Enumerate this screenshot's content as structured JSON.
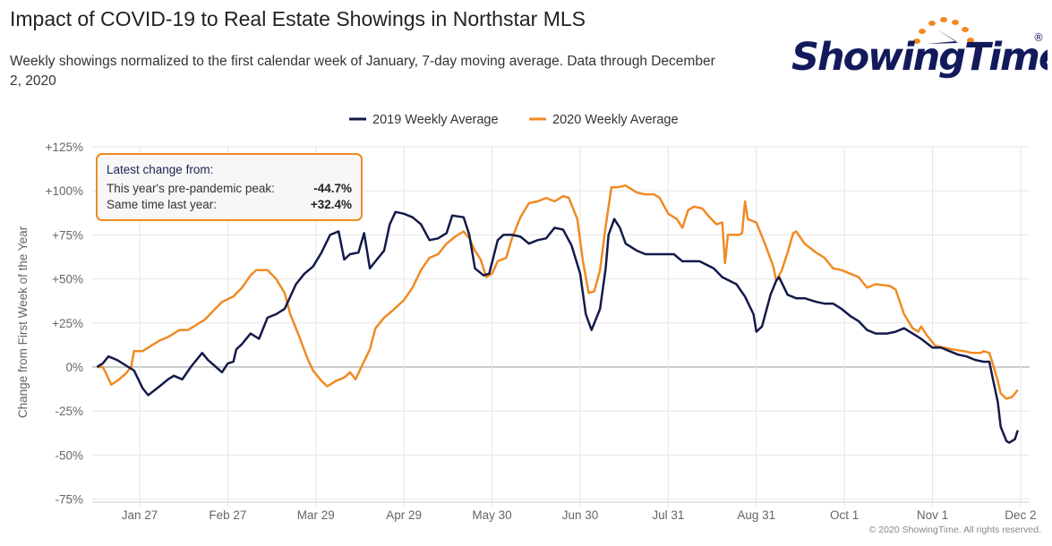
{
  "header": {
    "title": "Impact of COVID-19 to Real Estate Showings in Northstar MLS",
    "subtitle": "Weekly showings normalized to the first calendar week of January, 7-day moving average. Data through December 2, 2020"
  },
  "logo": {
    "text": "ShowingTime",
    "registered": "®",
    "colors": {
      "text": "#131a5c",
      "dots": "#f08a24"
    }
  },
  "infobox": {
    "heading": "Latest change from:",
    "rows": [
      {
        "label": "This year's pre-pandemic peak:",
        "value": "-44.7%"
      },
      {
        "label": "Same time last year:",
        "value": "+32.4%"
      }
    ]
  },
  "footer": {
    "copyright": "© 2020 ShowingTime. All rights reserved."
  },
  "chart_data": {
    "type": "line",
    "title": "",
    "xlabel": "",
    "ylabel": "Change from First Week of the Year",
    "ylim": [
      -75,
      125
    ],
    "y_ticks": [
      "+125%",
      "+100%",
      "+75%",
      "+50%",
      "+25%",
      "0%",
      "-25%",
      "-50%",
      "-75%"
    ],
    "y_tick_values": [
      125,
      100,
      75,
      50,
      25,
      0,
      -25,
      -50,
      -75
    ],
    "x_ticks": [
      "Jan 27",
      "Feb 27",
      "Mar 29",
      "Apr 29",
      "May 30",
      "Jun 30",
      "Jul 31",
      "Aug 31",
      "Oct 1",
      "Nov 1",
      "Dec 2"
    ],
    "grid": true,
    "legend": "top-center",
    "series": [
      {
        "name": "2019 Weekly Average",
        "color": "#131a4a",
        "points": [
          [
            "Jan 12",
            0
          ],
          [
            "Jan 14",
            2
          ],
          [
            "Jan 16",
            6
          ],
          [
            "Jan 19",
            4
          ],
          [
            "Jan 22",
            1
          ],
          [
            "Jan 25",
            -2
          ],
          [
            "Jan 28",
            -12
          ],
          [
            "Jan 30",
            -16
          ],
          [
            "Feb 3",
            -11
          ],
          [
            "Feb 6",
            -7
          ],
          [
            "Feb 8",
            -5
          ],
          [
            "Feb 11",
            -7
          ],
          [
            "Feb 14",
            0
          ],
          [
            "Feb 18",
            8
          ],
          [
            "Feb 20",
            4
          ],
          [
            "Feb 25",
            -3
          ],
          [
            "Feb 27",
            2
          ],
          [
            "Feb 29",
            3
          ],
          [
            "Mar 1",
            10
          ],
          [
            "Mar 3",
            13
          ],
          [
            "Mar 6",
            19
          ],
          [
            "Mar 9",
            16
          ],
          [
            "Mar 12",
            28
          ],
          [
            "Mar 15",
            30
          ],
          [
            "Mar 18",
            33
          ],
          [
            "Mar 22",
            47
          ],
          [
            "Mar 25",
            53
          ],
          [
            "Mar 28",
            57
          ],
          [
            "Mar 31",
            65
          ],
          [
            "Apr 3",
            75
          ],
          [
            "Apr 6",
            77
          ],
          [
            "Apr 8",
            61
          ],
          [
            "Apr 10",
            64
          ],
          [
            "Apr 13",
            65
          ],
          [
            "Apr 15",
            76
          ],
          [
            "Apr 17",
            56
          ],
          [
            "Apr 19",
            60
          ],
          [
            "Apr 22",
            66
          ],
          [
            "Apr 24",
            81
          ],
          [
            "Apr 26",
            88
          ],
          [
            "Apr 29",
            87
          ],
          [
            "May 2",
            85
          ],
          [
            "May 5",
            81
          ],
          [
            "May 8",
            72
          ],
          [
            "May 11",
            73
          ],
          [
            "May 14",
            76
          ],
          [
            "May 16",
            86
          ],
          [
            "May 20",
            85
          ],
          [
            "May 22",
            75
          ],
          [
            "May 24",
            56
          ],
          [
            "May 27",
            52
          ],
          [
            "May 29",
            53
          ],
          [
            "Jun 1",
            72
          ],
          [
            "Jun 3",
            75
          ],
          [
            "Jun 6",
            75
          ],
          [
            "Jun 9",
            74
          ],
          [
            "Jun 12",
            70
          ],
          [
            "Jun 15",
            72
          ],
          [
            "Jun 18",
            73
          ],
          [
            "Jun 21",
            79
          ],
          [
            "Jun 24",
            78
          ],
          [
            "Jun 27",
            69
          ],
          [
            "Jun 30",
            53
          ],
          [
            "Jul 2",
            30
          ],
          [
            "Jul 4",
            21
          ],
          [
            "Jul 7",
            33
          ],
          [
            "Jul 9",
            56
          ],
          [
            "Jul 10",
            75
          ],
          [
            "Jul 12",
            84
          ],
          [
            "Jul 14",
            79
          ],
          [
            "Jul 16",
            70
          ],
          [
            "Jul 20",
            66
          ],
          [
            "Jul 23",
            64
          ],
          [
            "Jul 27",
            64
          ],
          [
            "Aug 2",
            64
          ],
          [
            "Aug 5",
            60
          ],
          [
            "Aug 11",
            60
          ],
          [
            "Aug 16",
            56
          ],
          [
            "Aug 19",
            51
          ],
          [
            "Aug 24",
            47
          ],
          [
            "Aug 27",
            40
          ],
          [
            "Aug 30",
            30
          ],
          [
            "Aug 31",
            20
          ],
          [
            "Sep 2",
            23
          ],
          [
            "Sep 5",
            41
          ],
          [
            "Sep 7",
            49
          ],
          [
            "Sep 8",
            51
          ],
          [
            "Sep 11",
            41
          ],
          [
            "Sep 14",
            39
          ],
          [
            "Sep 17",
            39
          ],
          [
            "Sep 21",
            37
          ],
          [
            "Sep 24",
            36
          ],
          [
            "Sep 27",
            36
          ],
          [
            "Sep 30",
            33
          ],
          [
            "Oct 3",
            29
          ],
          [
            "Oct 6",
            26
          ],
          [
            "Oct 9",
            21
          ],
          [
            "Oct 12",
            19
          ],
          [
            "Oct 16",
            19
          ],
          [
            "Oct 19",
            20
          ],
          [
            "Oct 22",
            22
          ],
          [
            "Oct 25",
            19
          ],
          [
            "Oct 28",
            16
          ],
          [
            "Nov 1",
            11
          ],
          [
            "Nov 4",
            11
          ],
          [
            "Nov 7",
            9
          ],
          [
            "Nov 10",
            7
          ],
          [
            "Nov 13",
            6
          ],
          [
            "Nov 16",
            4
          ],
          [
            "Nov 19",
            3
          ],
          [
            "Nov 21",
            3
          ],
          [
            "Nov 22",
            -5
          ],
          [
            "Nov 24",
            -20
          ],
          [
            "Nov 25",
            -34
          ],
          [
            "Nov 27",
            -42
          ],
          [
            "Nov 28",
            -43
          ],
          [
            "Nov 30",
            -41
          ],
          [
            "Dec 1",
            -36
          ]
        ]
      },
      {
        "name": "2020 Weekly Average",
        "color": "#f08a24",
        "points": [
          [
            "Jan 12",
            0
          ],
          [
            "Jan 14",
            0
          ],
          [
            "Jan 15",
            -3
          ],
          [
            "Jan 17",
            -10
          ],
          [
            "Jan 19",
            -8
          ],
          [
            "Jan 22",
            -4
          ],
          [
            "Jan 24",
            0
          ],
          [
            "Jan 25",
            9
          ],
          [
            "Jan 28",
            9
          ],
          [
            "Jan 31",
            12
          ],
          [
            "Feb 3",
            15
          ],
          [
            "Feb 6",
            17
          ],
          [
            "Feb 10",
            21
          ],
          [
            "Feb 13",
            21
          ],
          [
            "Feb 16",
            24
          ],
          [
            "Feb 19",
            27
          ],
          [
            "Feb 22",
            32
          ],
          [
            "Feb 25",
            37
          ],
          [
            "Feb 29",
            40
          ],
          [
            "Mar 3",
            45
          ],
          [
            "Mar 6",
            52
          ],
          [
            "Mar 8",
            55
          ],
          [
            "Mar 12",
            55
          ],
          [
            "Mar 15",
            50
          ],
          [
            "Mar 18",
            42
          ],
          [
            "Mar 20",
            30
          ],
          [
            "Mar 23",
            18
          ],
          [
            "Mar 26",
            5
          ],
          [
            "Mar 28",
            -2
          ],
          [
            "Mar 31",
            -8
          ],
          [
            "Apr 2",
            -11
          ],
          [
            "Apr 5",
            -8
          ],
          [
            "Apr 8",
            -6
          ],
          [
            "Apr 10",
            -3
          ],
          [
            "Apr 12",
            -7
          ],
          [
            "Apr 14",
            0
          ],
          [
            "Apr 17",
            10
          ],
          [
            "Apr 19",
            22
          ],
          [
            "Apr 22",
            28
          ],
          [
            "Apr 25",
            32
          ],
          [
            "Apr 29",
            38
          ],
          [
            "May 2",
            45
          ],
          [
            "May 5",
            55
          ],
          [
            "May 8",
            62
          ],
          [
            "May 11",
            64
          ],
          [
            "May 14",
            70
          ],
          [
            "May 17",
            74
          ],
          [
            "May 20",
            77
          ],
          [
            "May 22",
            73
          ],
          [
            "May 24",
            66
          ],
          [
            "May 26",
            61
          ],
          [
            "May 28",
            51
          ],
          [
            "May 30",
            53
          ],
          [
            "Jun 1",
            60
          ],
          [
            "Jun 4",
            62
          ],
          [
            "Jun 6",
            73
          ],
          [
            "Jun 9",
            85
          ],
          [
            "Jun 12",
            93
          ],
          [
            "Jun 15",
            94
          ],
          [
            "Jun 18",
            96
          ],
          [
            "Jun 21",
            94
          ],
          [
            "Jun 24",
            97
          ],
          [
            "Jun 26",
            96
          ],
          [
            "Jun 29",
            84
          ],
          [
            "Jul 1",
            60
          ],
          [
            "Jul 3",
            42
          ],
          [
            "Jul 5",
            43
          ],
          [
            "Jul 7",
            55
          ],
          [
            "Jul 9",
            80
          ],
          [
            "Jul 11",
            102
          ],
          [
            "Jul 13",
            102
          ],
          [
            "Jul 16",
            103
          ],
          [
            "Jul 20",
            99
          ],
          [
            "Jul 23",
            98
          ],
          [
            "Jul 26",
            98
          ],
          [
            "Jul 28",
            96
          ],
          [
            "Jul 31",
            87
          ],
          [
            "Aug 3",
            84
          ],
          [
            "Aug 5",
            79
          ],
          [
            "Aug 7",
            89
          ],
          [
            "Aug 9",
            91
          ],
          [
            "Aug 12",
            90
          ],
          [
            "Aug 14",
            86
          ],
          [
            "Aug 17",
            81
          ],
          [
            "Aug 19",
            82
          ],
          [
            "Aug 20",
            59
          ],
          [
            "Aug 21",
            75
          ],
          [
            "Aug 25",
            75
          ],
          [
            "Aug 26",
            76
          ],
          [
            "Aug 27",
            94
          ],
          [
            "Aug 28",
            84
          ],
          [
            "Aug 31",
            82
          ],
          [
            "Sep 3",
            70
          ],
          [
            "Sep 6",
            57
          ],
          [
            "Sep 7",
            49
          ],
          [
            "Sep 9",
            55
          ],
          [
            "Sep 11",
            65
          ],
          [
            "Sep 13",
            76
          ],
          [
            "Sep 14",
            77
          ],
          [
            "Sep 17",
            70
          ],
          [
            "Sep 21",
            65
          ],
          [
            "Sep 24",
            62
          ],
          [
            "Sep 27",
            56
          ],
          [
            "Sep 30",
            55
          ],
          [
            "Oct 3",
            53
          ],
          [
            "Oct 6",
            51
          ],
          [
            "Oct 9",
            45
          ],
          [
            "Oct 12",
            47
          ],
          [
            "Oct 17",
            46
          ],
          [
            "Oct 19",
            44
          ],
          [
            "Oct 22",
            30
          ],
          [
            "Oct 25",
            22
          ],
          [
            "Oct 27",
            20
          ],
          [
            "Oct 28",
            23
          ],
          [
            "Oct 30",
            18
          ],
          [
            "Nov 2",
            12
          ],
          [
            "Nov 5",
            11
          ],
          [
            "Nov 8",
            10
          ],
          [
            "Nov 12",
            9
          ],
          [
            "Nov 15",
            8
          ],
          [
            "Nov 18",
            8
          ],
          [
            "Nov 19",
            9
          ],
          [
            "Nov 21",
            8
          ],
          [
            "Nov 22",
            3
          ],
          [
            "Nov 24",
            -8
          ],
          [
            "Nov 25",
            -15
          ],
          [
            "Nov 27",
            -18
          ],
          [
            "Nov 29",
            -17
          ],
          [
            "Dec 1",
            -13
          ]
        ]
      }
    ]
  }
}
